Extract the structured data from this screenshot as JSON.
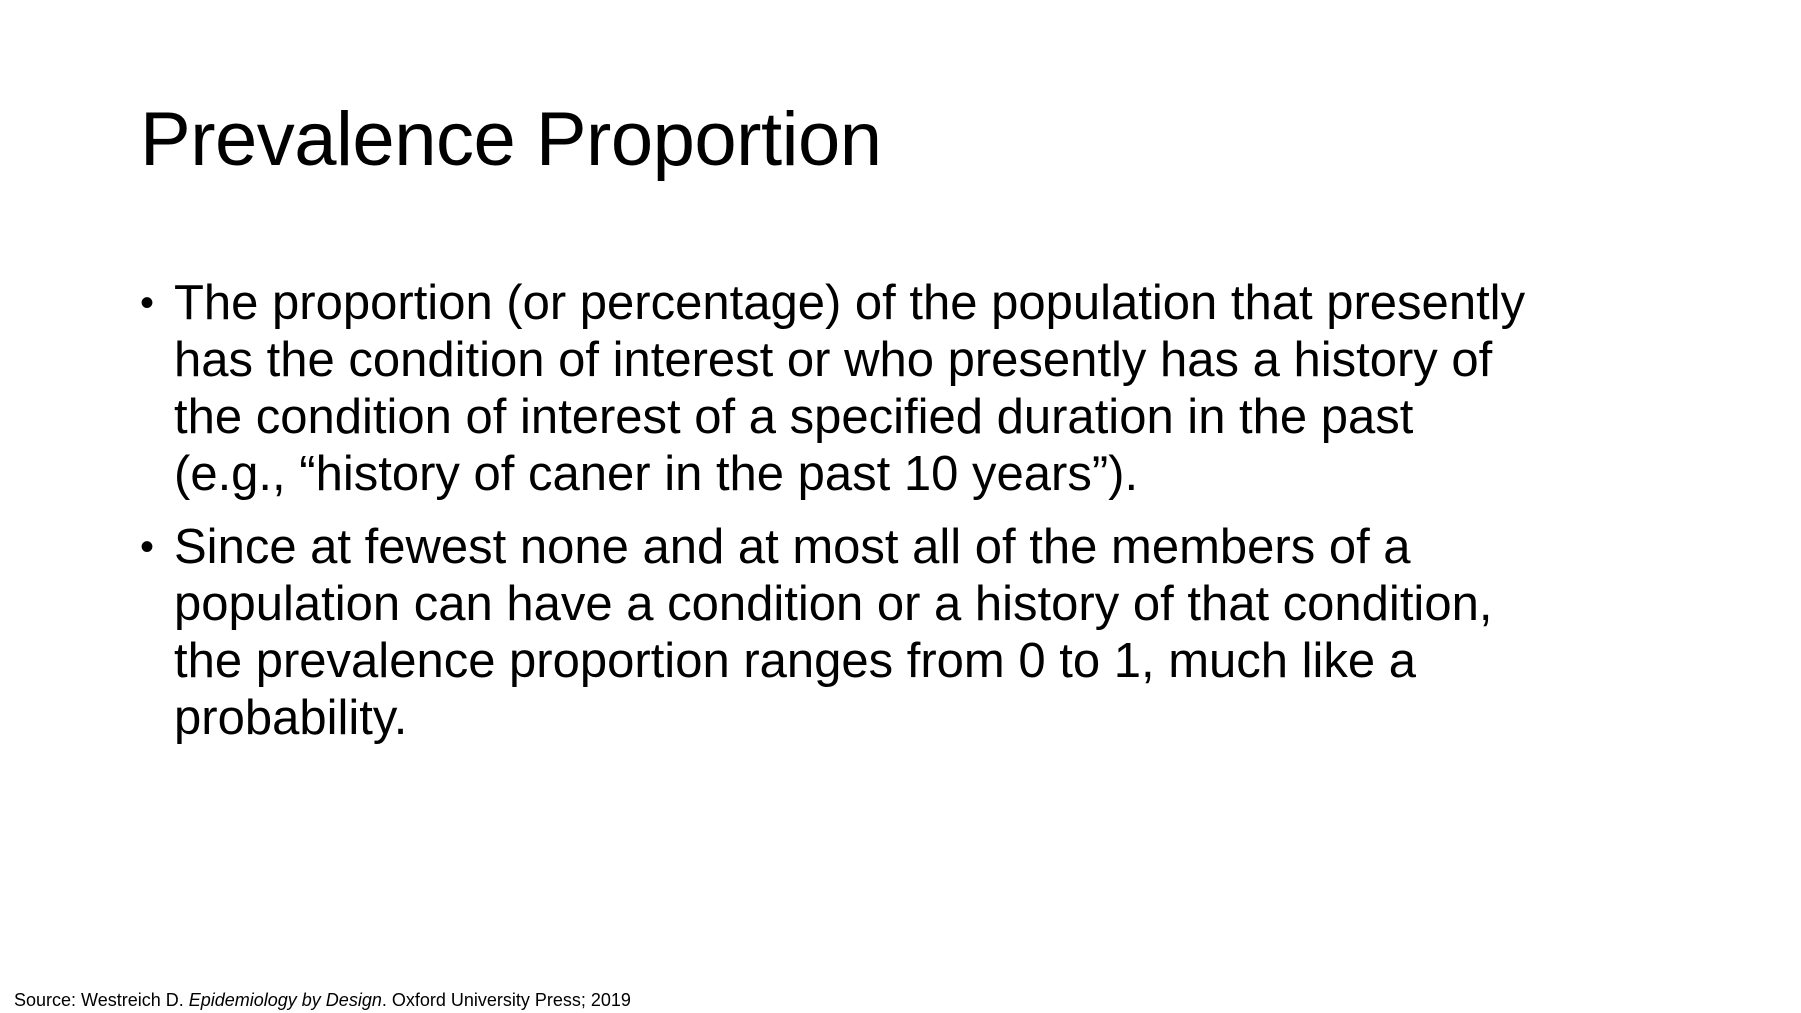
{
  "slide": {
    "title": "Prevalence Proportion",
    "bullets": [
      {
        "lines": [
          "The proportion (or percentage) of the population that presently",
          "has the condition of interest or who presently has a history of",
          "the condition of interest of a specified duration in the past",
          "(e.g., “history of caner in the past 10 years”)."
        ]
      },
      {
        "lines": [
          "Since at fewest none and at most all of the members of a",
          "population can have a condition or a history of that condition,",
          "the prevalence proportion ranges from 0 to 1, much like a",
          "probability."
        ]
      }
    ],
    "bullet_symbol": "•",
    "source": {
      "prefix": "Source: Westreich D. ",
      "book_title": "Epidemiology by Design",
      "suffix": ". Oxford University Press; 2019"
    }
  }
}
